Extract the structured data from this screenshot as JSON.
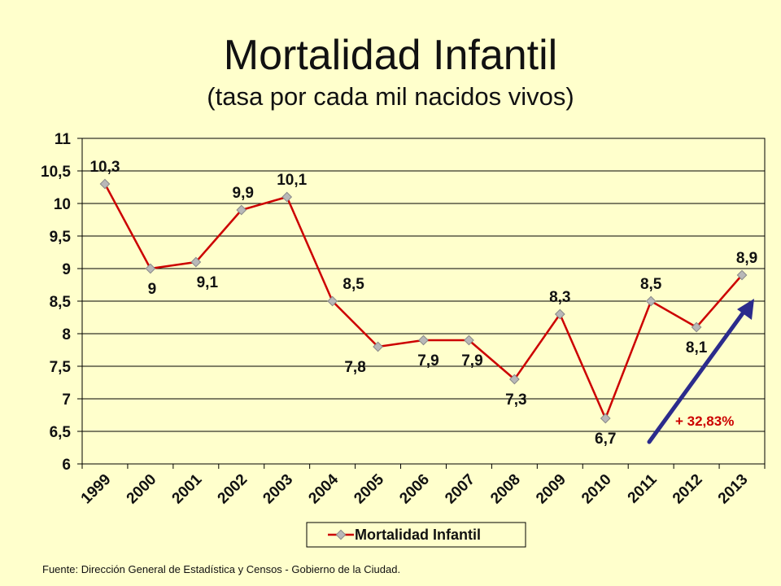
{
  "title": "Mortalidad Infantil",
  "subtitle": "(tasa por cada mil nacidos vivos)",
  "source": "Fuente:  Dirección General de Estadística y Censos - Gobierno de la Ciudad.",
  "annotation": {
    "label": "+ 32,83%",
    "color": "#CC0000",
    "arrow_color": "#2B2B8C"
  },
  "colors": {
    "background": "#FFFFCC",
    "series": "#CC0000",
    "marker": "#B8B8B8"
  },
  "chart_data": {
    "type": "line",
    "title": "Mortalidad Infantil",
    "subtitle": "(tasa por cada mil nacidos vivos)",
    "x": [
      "1999",
      "2000",
      "2001",
      "2002",
      "2003",
      "2004",
      "2005",
      "2006",
      "2007",
      "2008",
      "2009",
      "2010",
      "2011",
      "2012",
      "2013"
    ],
    "series": [
      {
        "name": "Mortalidad Infantil",
        "values": [
          10.3,
          9,
          9.1,
          9.9,
          10.1,
          8.5,
          7.8,
          7.9,
          7.9,
          7.3,
          8.3,
          6.7,
          8.5,
          8.1,
          8.9
        ],
        "labels": [
          "10,3",
          "9",
          "9,1",
          "9,9",
          "10,1",
          "8,5",
          "7,8",
          "7,9",
          "7,9",
          "7,3",
          "8,3",
          "6,7",
          "8,5",
          "8,1",
          "8,9"
        ]
      }
    ],
    "ylim": [
      6,
      11
    ],
    "yticks": [
      6,
      6.5,
      7,
      7.5,
      8,
      8.5,
      9,
      9.5,
      10,
      10.5,
      11
    ],
    "ytick_labels": [
      "6",
      "6,5",
      "7",
      "7,5",
      "8",
      "8,5",
      "9",
      "9,5",
      "10",
      "10,5",
      "11"
    ],
    "grid": true,
    "legend": "bottom-center"
  }
}
